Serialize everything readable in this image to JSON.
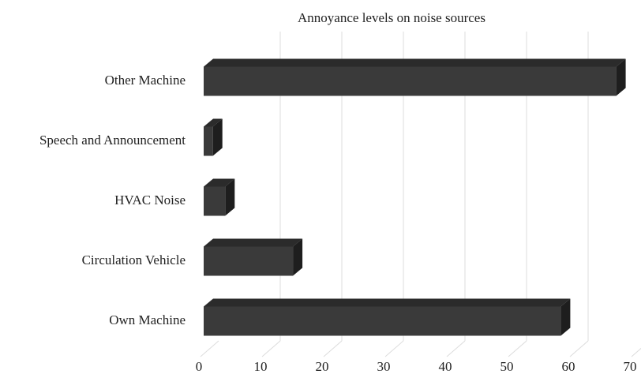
{
  "chart_data": {
    "type": "bar3d_horizontal",
    "title": "Annoyance levels on noise sources",
    "categories": [
      "Other Machine",
      "Speech and Announcement",
      "HVAC Noise",
      "Circulation Vehicle",
      "Own Machine"
    ],
    "values": [
      67,
      1.5,
      3.5,
      14.5,
      58
    ],
    "color": "#3a3a3a",
    "xlim": [
      0,
      70
    ],
    "xticks": [
      0,
      10,
      20,
      30,
      40,
      50,
      60,
      70
    ],
    "grid": true
  }
}
